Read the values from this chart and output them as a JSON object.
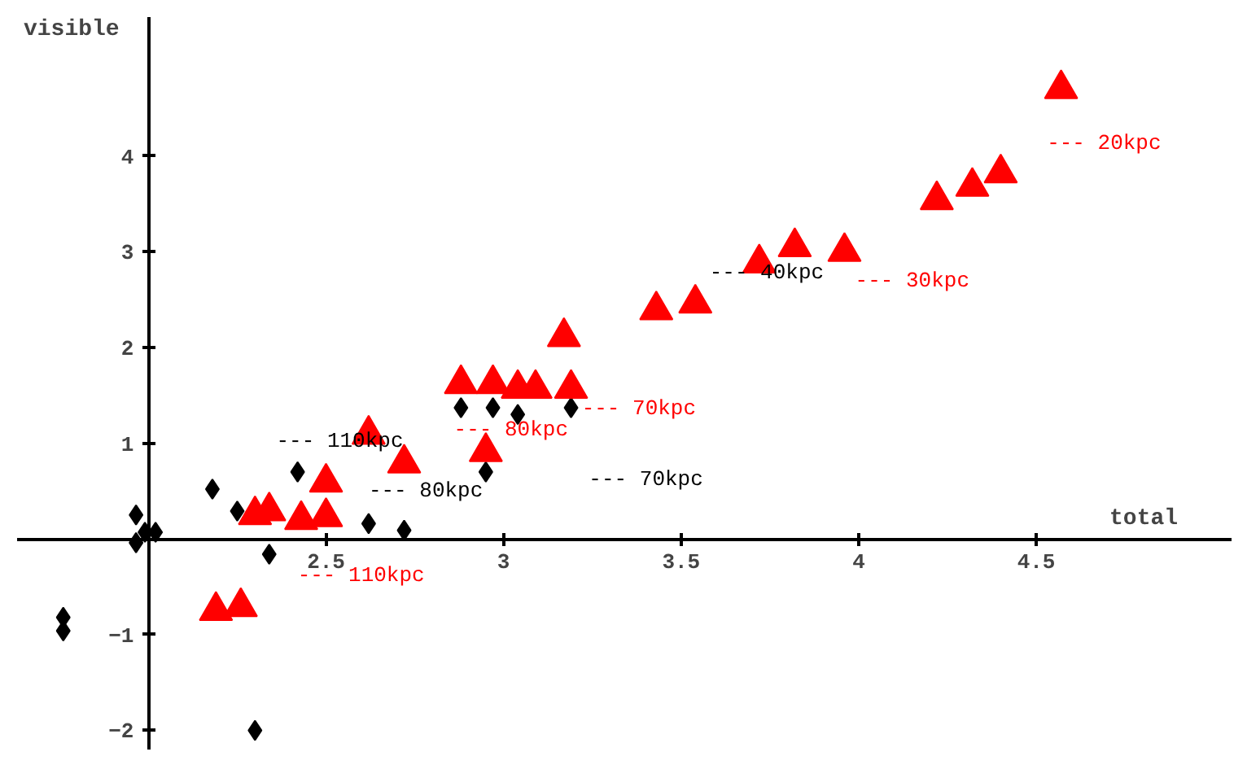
{
  "chart_data": {
    "type": "scatter",
    "xlabel": "total",
    "ylabel": "visible",
    "xlim": [
      1.63,
      5.05
    ],
    "ylim": [
      -2.2,
      5.45
    ],
    "xticks": [
      2.5,
      3,
      3.5,
      4,
      4.5
    ],
    "yticks": [
      -2,
      -1,
      1,
      2,
      3,
      4
    ],
    "grid": false,
    "series": [
      {
        "color": "#000000",
        "marker": "diamond",
        "x": [
          1.965,
          1.99,
          1.965,
          2.02,
          1.76,
          1.76,
          2.18,
          2.25,
          2.34,
          2.42,
          2.3,
          2.62,
          2.72,
          2.88,
          2.97,
          3.04,
          3.19,
          2.95
        ],
        "values": [
          0.25,
          0.07,
          -0.04,
          0.07,
          -0.82,
          -0.96,
          0.52,
          0.29,
          -0.16,
          0.7,
          -2.0,
          0.16,
          0.09,
          1.37,
          1.37,
          1.3,
          1.37,
          0.7
        ]
      },
      {
        "color": "#ff0000",
        "marker": "triangle",
        "x": [
          2.19,
          2.26,
          2.3,
          2.34,
          2.43,
          2.5,
          2.5,
          2.62,
          2.72,
          2.95,
          2.88,
          2.97,
          3.04,
          3.09,
          3.19,
          3.17,
          3.43,
          3.54,
          3.72,
          3.82,
          3.96,
          4.22,
          4.32,
          4.4,
          4.57
        ],
        "values": [
          -0.75,
          -0.71,
          0.25,
          0.29,
          0.2,
          0.23,
          0.59,
          1.09,
          0.79,
          0.91,
          1.62,
          1.62,
          1.57,
          1.57,
          1.57,
          2.11,
          2.39,
          2.46,
          2.88,
          3.05,
          3.0,
          3.54,
          3.68,
          3.82,
          4.7
        ]
      }
    ],
    "annotations": [
      "--- 20kpc",
      "--- 40kpc",
      "--- 30kpc",
      "--- 110kpc",
      "--- 80kpc",
      "--- 70kpc",
      "--- 80kpc",
      "--- 70kpc",
      "--- 110kpc"
    ]
  }
}
